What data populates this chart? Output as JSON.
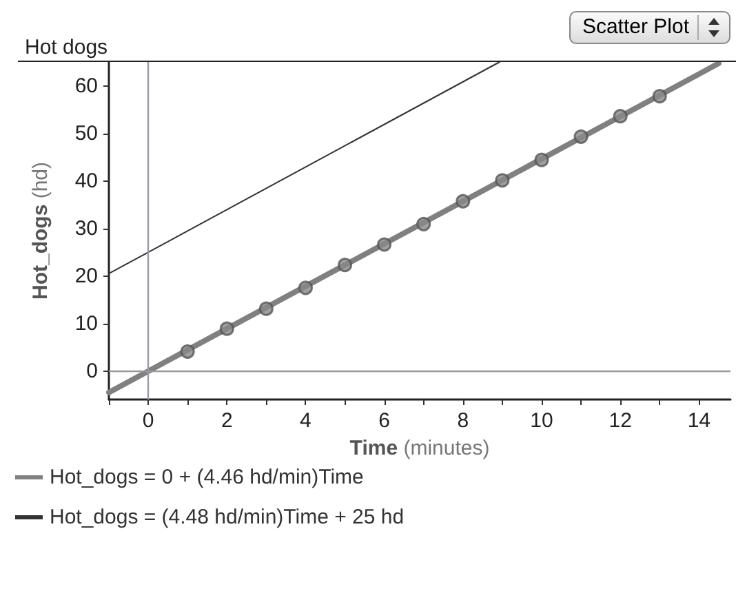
{
  "chart_data": {
    "type": "scatter",
    "title": "Hot dogs",
    "xlabel": "Time (minutes)",
    "ylabel": "Hot_dogs (hd)",
    "annotations": [
      "Scatter Plot"
    ],
    "series": [
      {
        "color": "#555555",
        "x": [
          1,
          2,
          3,
          4,
          5,
          6,
          7,
          8,
          9,
          10,
          11,
          12,
          13
        ],
        "values": [
          4.1,
          8.9,
          13.1,
          17.5,
          22.3,
          26.6,
          30.9,
          35.7,
          40.1,
          44.4,
          49.3,
          53.6,
          57.8
        ]
      },
      {
        "type": "line",
        "name": "Hot_dogs = 0 + (4.46 hd/min)Time",
        "color": "#808080",
        "marker": "none",
        "x": [
          -1,
          14.5
        ],
        "values": [
          -4.5,
          64.7
        ]
      },
      {
        "type": "line",
        "name": "Hot_dogs = (4.48 hd/min)Time + 25 hd",
        "color": "#333333",
        "marker": "none",
        "x": [
          -1,
          8.93
        ],
        "values": [
          20.5,
          65
        ]
      }
    ],
    "xlim": [
      -1,
      14.8
    ],
    "ylim": [
      -6,
      65
    ],
    "xticks": [
      {
        "value": -1,
        "label": null
      },
      0,
      {
        "value": 1,
        "label": null
      },
      2,
      {
        "value": 3,
        "label": null
      },
      4,
      {
        "value": 5,
        "label": null
      },
      6,
      {
        "value": 7,
        "label": null
      },
      8,
      {
        "value": 9,
        "label": null
      },
      10,
      {
        "value": 11,
        "label": null
      },
      12,
      {
        "value": 13,
        "label": null
      },
      14
    ],
    "yticks": [
      0,
      10,
      20,
      30,
      40,
      50,
      60
    ],
    "ref_lines": [
      {
        "axis": "x",
        "value": 0,
        "color": "#9a9aa8"
      },
      {
        "axis": "y",
        "value": 0,
        "color": "#999999"
      }
    ],
    "marker": "circle",
    "grid": false,
    "legend": "bottom"
  }
}
